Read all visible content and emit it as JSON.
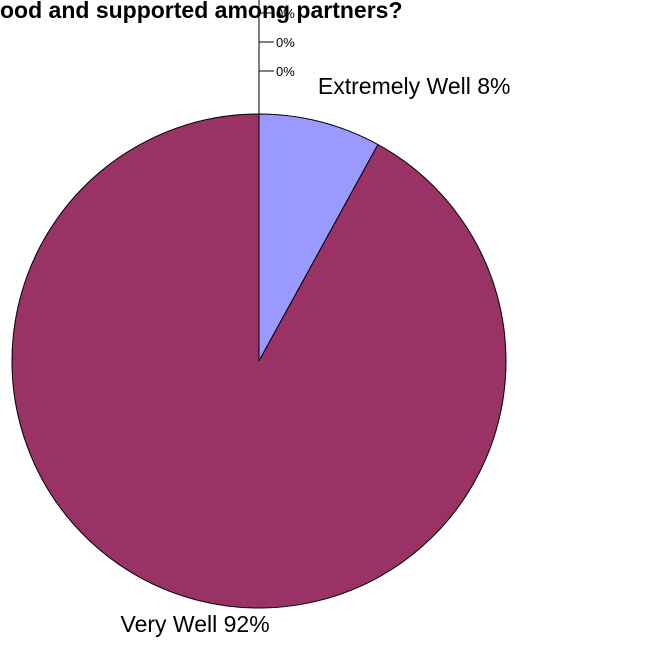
{
  "chart_data": {
    "type": "pie",
    "title": "ood and supported among partners?",
    "slices": [
      {
        "label": "Extremely Well",
        "value": 8,
        "value_label": "8%",
        "color": "#9999ff"
      },
      {
        "label": "Very Well",
        "value": 92,
        "value_label": "92%",
        "color": "#993366"
      },
      {
        "label": "",
        "value": 0,
        "value_label": "0%",
        "color": "#ffffcc"
      },
      {
        "label": "",
        "value": 0,
        "value_label": "0%",
        "color": "#ccffff"
      },
      {
        "label": "",
        "value": 0,
        "value_label": "0%",
        "color": "#660066"
      }
    ],
    "legend": "none"
  }
}
